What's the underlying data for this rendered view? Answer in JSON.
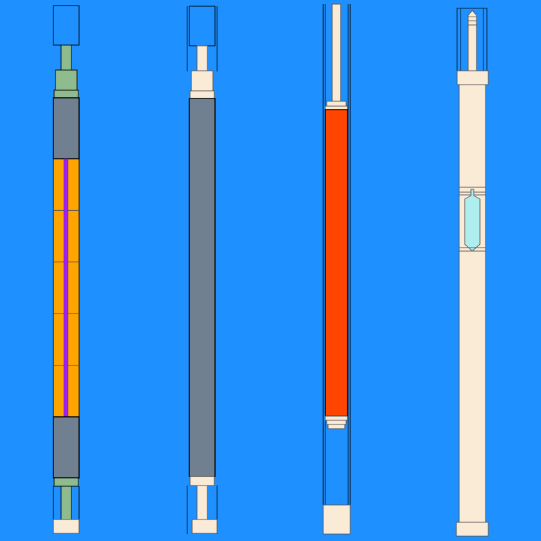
{
  "colors": {
    "background": "#1e90ff",
    "outline": "#000000",
    "stroke_light": "#555555",
    "steel_gray": "#708090",
    "fuel_orange": "#ffa500",
    "center_purple": "#a020f0",
    "spring_green": "#8fbc8f",
    "cap_linen": "#faebd7",
    "pellet_red": "#ff4500",
    "capsule_cyan": "#afeeee"
  },
  "diagram": {
    "columns": [
      {
        "name": "rod-1",
        "parts": [
          "top-plenum",
          "spring",
          "spring-collar",
          "insulator-upper",
          "fuel-stack",
          "center-wire",
          "insulator-lower",
          "spring-collar",
          "spring",
          "end-cap"
        ],
        "fuel_segments": 5
      },
      {
        "name": "rod-2",
        "parts": [
          "top-plenum",
          "upper-plug",
          "end-flange",
          "insulator-body",
          "end-flange",
          "lower-plug",
          "end-cap"
        ]
      },
      {
        "name": "rod-3",
        "parts": [
          "guide-tube",
          "upper-stem",
          "upper-washer",
          "pellet-column",
          "lower-washer",
          "lower-plenum",
          "end-cap"
        ]
      },
      {
        "name": "rod-4",
        "parts": [
          "upper-stem",
          "tip",
          "shoulder-flange",
          "body",
          "capsule-holder",
          "capsule",
          "end-cap"
        ]
      }
    ]
  }
}
